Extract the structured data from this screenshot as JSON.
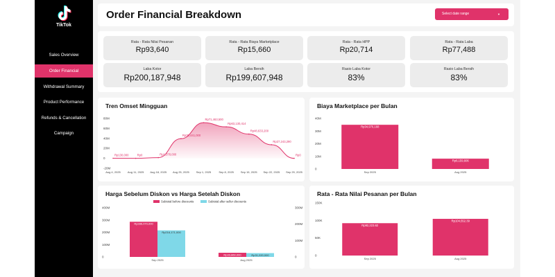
{
  "app": {
    "logo_text": "TikTok"
  },
  "sidebar": {
    "items": [
      {
        "label": "Sales Overview",
        "active": false
      },
      {
        "label": "Order Financial",
        "active": true
      },
      {
        "label": "Withdrawal Summary",
        "active": false
      },
      {
        "label": "Product Performance",
        "active": false
      },
      {
        "label": "Refunds & Cancellation",
        "active": false
      },
      {
        "label": "Campaign",
        "active": false
      }
    ]
  },
  "header": {
    "title": "Order Financial Breakdown",
    "date_range_label": "Select date range",
    "date_range_icon": "caret-down-icon"
  },
  "colors": {
    "accent": "#e0336a",
    "secondary": "#7fd8e8",
    "sidebar": "#000000"
  },
  "kpis": [
    {
      "label": "Rata - Rata Nilai Pesanan",
      "value": "Rp93,640"
    },
    {
      "label": "Rata - Rata Biaya Marketplace",
      "value": "Rp15,660"
    },
    {
      "label": "Rata - Rata HPP",
      "value": "Rp20,714"
    },
    {
      "label": "Rata - Rata Laba",
      "value": "Rp77,488"
    },
    {
      "label": "Laba Kotor",
      "value": "Rp200,187,948"
    },
    {
      "label": "Laba Bersih",
      "value": "Rp199,607,948"
    },
    {
      "label": "Rasio Laba Kotor",
      "value": "83%"
    },
    {
      "label": "Rasio Laba Bersih",
      "value": "83%"
    }
  ],
  "charts": {
    "weekly": {
      "title": "Tren Omset Mingguan"
    },
    "marketplace": {
      "title": "Biaya Marketplace per Bulan"
    },
    "discount": {
      "title": "Harga Sebelum Diskon vs Harga Setelah Diskon"
    },
    "aov": {
      "title": "Rata - Rata Nilai Pesanan per Bulan"
    }
  },
  "chart_data": [
    {
      "type": "area",
      "title": "Tren Omset Mingguan",
      "categories": [
        "Aug 4, 2025",
        "Aug 11, 2025",
        "Aug 18, 2025",
        "Aug 25, 2025",
        "Sep 1, 2025",
        "Sep 8, 2025",
        "Sep 15, 2025",
        "Sep 22, 2025",
        "Sep 29, 2025"
      ],
      "values": [
        130000,
        0,
        1378000,
        39441000,
        71463500,
        63130414,
        48633200,
        27243290,
        0
      ],
      "labels": [
        "Rp130,000",
        "Rp0",
        "Rp1,378,000",
        "Rp39,441,000",
        "Rp71,463,500",
        "Rp63,130,414",
        "Rp48,633,200",
        "Rp27,243,290",
        "Rp0"
      ],
      "yticks": [
        "80M",
        "60M",
        "40M",
        "20M",
        "0",
        "-20M"
      ],
      "ylim": [
        -20000000,
        80000000
      ]
    },
    {
      "type": "bar",
      "title": "Biaya Marketplace per Bulan",
      "categories": [
        "Sep 2025",
        "Aug 2025"
      ],
      "values": [
        34970168,
        8159606
      ],
      "labels": [
        "Rp34,970,168",
        "Rp8,159,606"
      ],
      "yticks": [
        "40M",
        "30M",
        "20M",
        "10M",
        "0"
      ],
      "ylim": [
        0,
        40000000
      ]
    },
    {
      "type": "bar",
      "title": "Harga Sebelum Diskon vs Harga Setelah Diskon",
      "categories": [
        "Sep 2025",
        "Aug 2025"
      ],
      "series": [
        {
          "name": "Subtotal before discounts",
          "values": [
            286070000,
            33860000
          ],
          "labels": [
            "Rp286,070,000",
            "Rp33,860,000"
          ]
        },
        {
          "name": "Subtotal after seller discounts",
          "values": [
            216171000,
            31020000
          ],
          "labels": [
            "Rp216,171,000",
            "Rp31,020,000"
          ]
        }
      ],
      "yticks": [
        "400M",
        "300M",
        "200M",
        "100M",
        "0"
      ],
      "yticks_right": [
        "300M",
        "200M",
        "100M",
        "0"
      ],
      "ylim": [
        0,
        400000000
      ],
      "legend": "top"
    },
    {
      "type": "bar",
      "title": "Rata - Rata Nilai Pesanan per Bulan",
      "categories": [
        "Sep 2025",
        "Aug 2025"
      ],
      "values": [
        92223.62,
        104552.39
      ],
      "labels": [
        "Rp92,223.62",
        "Rp104,552.39"
      ],
      "yticks": [
        "150K",
        "100K",
        "50K",
        "0"
      ],
      "ylim": [
        0,
        150000
      ]
    }
  ]
}
